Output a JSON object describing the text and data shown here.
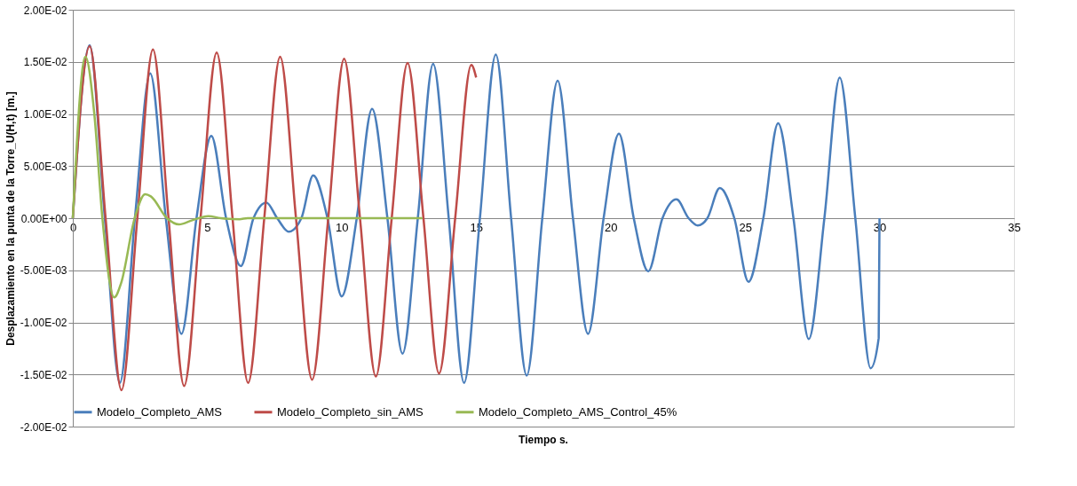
{
  "chart_data": {
    "type": "line",
    "xlabel": "Tiempo s.",
    "ylabel": "Desplazamiento en la punta de la Torre_U(H,t) [m.]",
    "xlim": [
      0,
      35
    ],
    "xticks": [
      0,
      5,
      10,
      15,
      20,
      25,
      30,
      35
    ],
    "ylim": [
      -0.02,
      0.02
    ],
    "yticks": [
      {
        "value": -0.02,
        "label": "-2.00E-02"
      },
      {
        "value": -0.015,
        "label": "-1.50E-02"
      },
      {
        "value": -0.01,
        "label": "-1.00E-02"
      },
      {
        "value": -0.005,
        "label": "-5.00E-03"
      },
      {
        "value": 0,
        "label": "0.00E+00"
      },
      {
        "value": 0.005,
        "label": "5.00E-03"
      },
      {
        "value": 0.01,
        "label": "1.00E-02"
      },
      {
        "value": 0.015,
        "label": "1.50E-02"
      },
      {
        "value": 0.02,
        "label": "2.00E-02"
      }
    ],
    "grid": "y",
    "legend": "bottom",
    "marker": "none",
    "line_style": "solid",
    "series": [
      {
        "name": "Modelo_Completo_AMS",
        "color": "#4a7ebb",
        "x": [
          0,
          0.625,
          1.19,
          1.75,
          2.31,
          2.88,
          3.46,
          4.04,
          4.6,
          5.15,
          5.7,
          6.25,
          6.72,
          7.2,
          7.6,
          8.03,
          8.5,
          8.94,
          9.47,
          10.0,
          10.56,
          11.13,
          11.7,
          12.26,
          12.83,
          13.4,
          13.98,
          14.55,
          15.14,
          15.73,
          16.3,
          16.88,
          17.46,
          18.03,
          18.6,
          19.16,
          19.74,
          20.31,
          20.86,
          21.4,
          21.93,
          22.45,
          22.9,
          23.24,
          23.6,
          24.06,
          24.6,
          25.13,
          25.68,
          26.23,
          26.8,
          27.37,
          27.95,
          28.52,
          29.1,
          29.67,
          29.97,
          30.0
        ],
        "values": [
          0,
          0.0166,
          0,
          -0.0158,
          0,
          0.0139,
          0,
          -0.0111,
          0,
          0.0079,
          0,
          -0.0046,
          0,
          0.0015,
          0,
          -0.0013,
          0,
          0.0041,
          0,
          -0.0075,
          0,
          0.0105,
          0,
          -0.013,
          0,
          0.0148,
          0,
          -0.0158,
          0,
          0.0157,
          0,
          -0.0151,
          0,
          0.0132,
          0,
          -0.0111,
          0,
          0.0081,
          0,
          -0.0051,
          0,
          0.0018,
          0,
          -0.0007,
          0,
          0.0029,
          0,
          -0.0061,
          0,
          0.0091,
          0,
          -0.0116,
          0,
          0.0135,
          0,
          -0.0144,
          -0.0115,
          0
        ]
      },
      {
        "name": "Modelo_Completo_sin_AMS",
        "color": "#be4b48",
        "x": [
          0,
          0.625,
          1.22,
          1.81,
          2.4,
          2.98,
          3.56,
          4.14,
          4.75,
          5.35,
          5.94,
          6.52,
          7.12,
          7.71,
          8.3,
          8.9,
          9.5,
          10.09,
          10.68,
          11.27,
          11.86,
          12.45,
          13.04,
          13.62,
          14.22,
          14.82,
          15.0
        ],
        "values": [
          0,
          0.0165,
          0,
          -0.0165,
          0,
          0.0162,
          0,
          -0.0161,
          0,
          0.0159,
          0,
          -0.0158,
          0,
          0.0155,
          0,
          -0.0155,
          0,
          0.0153,
          0,
          -0.0152,
          0,
          0.0149,
          0,
          -0.0149,
          0,
          0.0147,
          0.0135
        ]
      },
      {
        "name": "Modelo_Completo_AMS_Control_45%",
        "color": "#98b954",
        "x": [
          0,
          0.47,
          0.8,
          1.1,
          1.54,
          1.8,
          2.3,
          2.69,
          2.9,
          3.5,
          3.95,
          4.44,
          5.04,
          5.5,
          6.2,
          6.5,
          13.0
        ],
        "values": [
          0,
          0.0155,
          0.01,
          0,
          -0.0076,
          -0.0062,
          0,
          0.0023,
          0.0021,
          0,
          -0.0006,
          -0.0002,
          0.0002,
          0,
          -0.0001,
          0,
          0
        ]
      }
    ]
  }
}
